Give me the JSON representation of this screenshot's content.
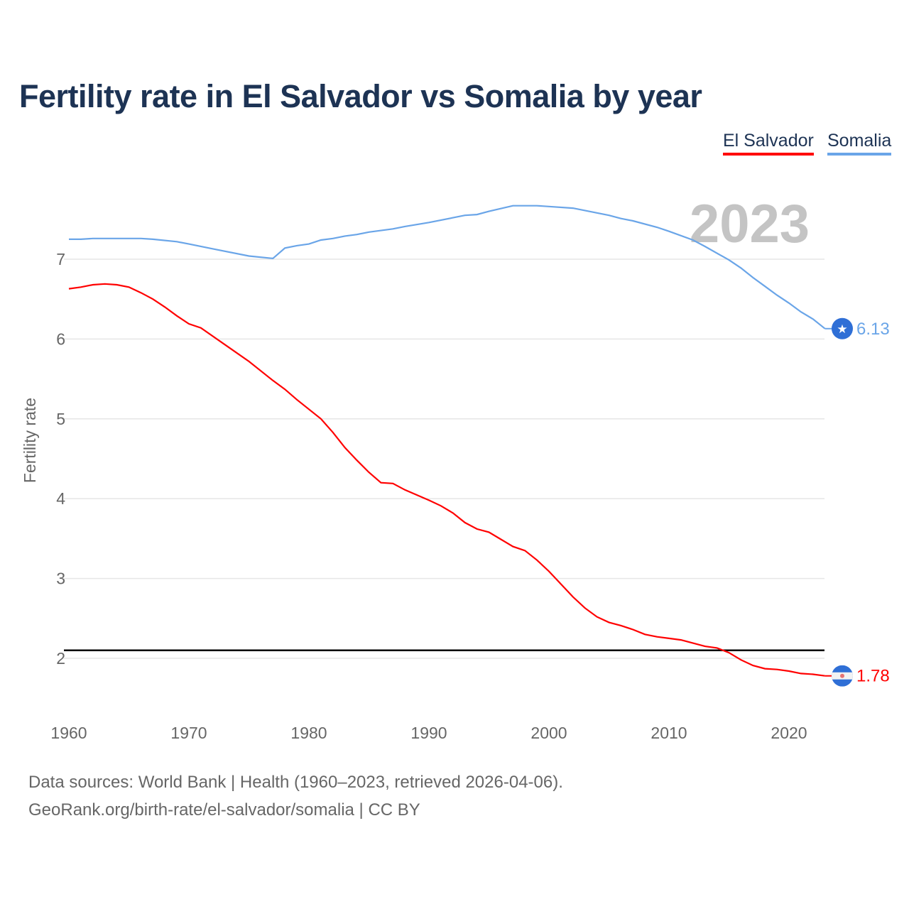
{
  "chart_data": {
    "type": "line",
    "title": "Fertility rate in El Salvador vs Somalia by year",
    "xlabel": "",
    "ylabel": "Fertility rate",
    "xlim": [
      1960,
      2023
    ],
    "ylim": [
      1.5,
      7.8
    ],
    "x_ticks": [
      "1960",
      "1970",
      "1980",
      "1990",
      "2000",
      "2010",
      "2020"
    ],
    "y_ticks": [
      "2",
      "3",
      "4",
      "5",
      "6",
      "7"
    ],
    "grid": true,
    "legend_placement": "top-right",
    "year_watermark": "2023",
    "reference_line": {
      "y": 2.1,
      "color": "#000000"
    },
    "series": [
      {
        "name": "El Salvador",
        "color": "#ff0000",
        "end_label": "1.78",
        "x": [
          1960,
          1961,
          1962,
          1963,
          1964,
          1965,
          1966,
          1967,
          1968,
          1969,
          1970,
          1971,
          1973,
          1975,
          1977,
          1978,
          1979,
          1981,
          1982,
          1983,
          1984,
          1985,
          1986,
          1987,
          1988,
          1990,
          1991,
          1992,
          1993,
          1994,
          1995,
          1996,
          1997,
          1998,
          1999,
          2000,
          2001,
          2002,
          2003,
          2004,
          2005,
          2006,
          2007,
          2008,
          2009,
          2010,
          2011,
          2012,
          2013,
          2014,
          2015,
          2016,
          2017,
          2018,
          2019,
          2020,
          2021,
          2022,
          2023
        ],
        "y": [
          6.63,
          6.65,
          6.68,
          6.69,
          6.68,
          6.65,
          6.58,
          6.5,
          6.4,
          6.29,
          6.19,
          6.14,
          5.93,
          5.72,
          5.48,
          5.37,
          5.24,
          5.0,
          4.83,
          4.64,
          4.48,
          4.33,
          4.2,
          4.19,
          4.11,
          3.98,
          3.91,
          3.82,
          3.7,
          3.62,
          3.58,
          3.49,
          3.4,
          3.35,
          3.23,
          3.09,
          2.93,
          2.77,
          2.63,
          2.52,
          2.45,
          2.41,
          2.36,
          2.3,
          2.27,
          2.25,
          2.23,
          2.19,
          2.15,
          2.13,
          2.07,
          1.98,
          1.91,
          1.87,
          1.86,
          1.84,
          1.81,
          1.8,
          1.78
        ]
      },
      {
        "name": "Somalia",
        "color": "#6aa5e8",
        "end_label": "6.13",
        "x": [
          1960,
          1961,
          1962,
          1964,
          1966,
          1967,
          1969,
          1970,
          1972,
          1975,
          1977,
          1978,
          1979,
          1980,
          1981,
          1982,
          1983,
          1984,
          1985,
          1987,
          1988,
          1990,
          1992,
          1993,
          1994,
          1995,
          1997,
          1999,
          2000,
          2002,
          2004,
          2005,
          2006,
          2007,
          2009,
          2010,
          2012,
          2013,
          2015,
          2016,
          2017,
          2018,
          2019,
          2020,
          2021,
          2022,
          2023
        ],
        "y": [
          7.25,
          7.25,
          7.26,
          7.26,
          7.26,
          7.25,
          7.22,
          7.19,
          7.13,
          7.04,
          7.01,
          7.14,
          7.17,
          7.19,
          7.24,
          7.26,
          7.29,
          7.31,
          7.34,
          7.38,
          7.41,
          7.46,
          7.52,
          7.55,
          7.56,
          7.6,
          7.67,
          7.67,
          7.66,
          7.64,
          7.58,
          7.55,
          7.51,
          7.48,
          7.4,
          7.35,
          7.24,
          7.16,
          6.99,
          6.89,
          6.77,
          6.66,
          6.55,
          6.45,
          6.34,
          6.25,
          6.13
        ]
      }
    ]
  },
  "footer": {
    "source": "Data sources: World Bank | Health (1960–2023, retrieved 2026-04-06).",
    "link": "GeoRank.org/birth-rate/el-salvador/somalia | CC BY"
  }
}
